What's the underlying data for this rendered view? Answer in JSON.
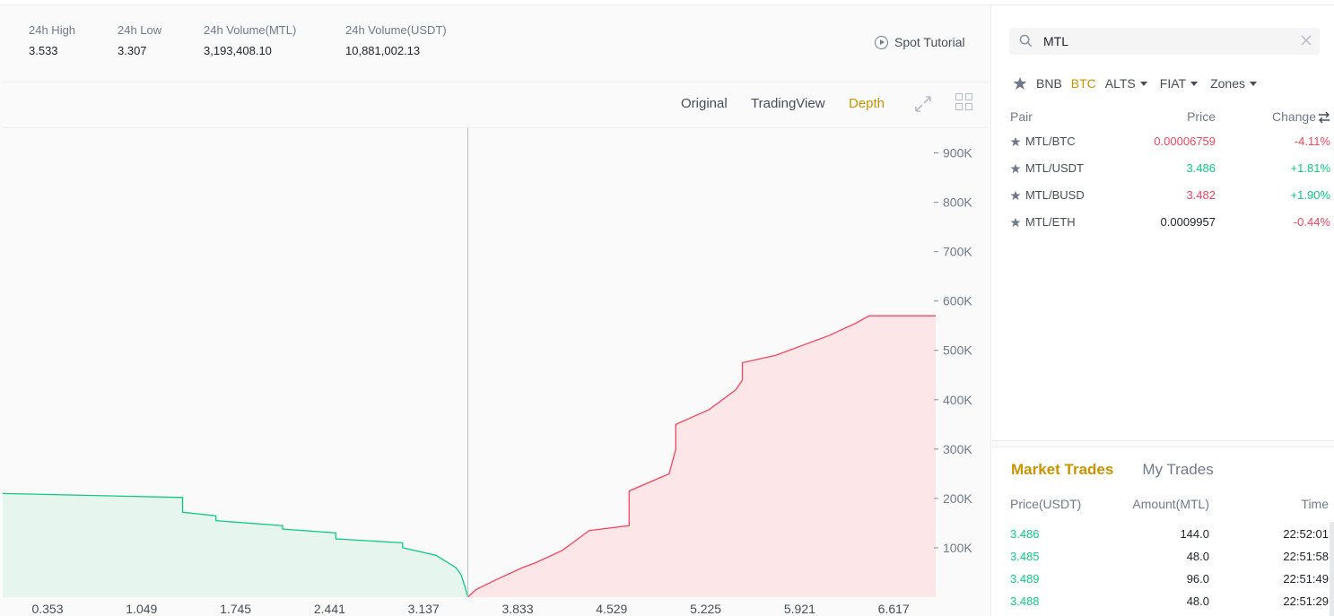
{
  "stats": [
    {
      "label": "24h High",
      "value": "3.533"
    },
    {
      "label": "24h Low",
      "value": "3.307"
    },
    {
      "label": "24h Volume(MTL)",
      "value": "3,193,408.10"
    },
    {
      "label": "24h Volume(USDT)",
      "value": "10,881,002.13"
    }
  ],
  "spot_tutorial": "Spot Tutorial",
  "chart_toolbar": {
    "original": "Original",
    "tradingview": "TradingView",
    "depth": "Depth"
  },
  "chart_data": {
    "type": "area",
    "title": "",
    "x_ticks": [
      "0.353",
      "1.049",
      "1.745",
      "2.441",
      "3.137",
      "3.833",
      "4.529",
      "5.225",
      "5.921",
      "6.617"
    ],
    "y_ticks": [
      "100K",
      "200K",
      "300K",
      "400K",
      "500K",
      "600K",
      "700K",
      "800K",
      "900K"
    ],
    "xlim": [
      0.0,
      7.0
    ],
    "ylim": [
      0,
      950000
    ],
    "mid_price": 3.49,
    "series": [
      {
        "side": "bids",
        "color": "#0ecb81",
        "x": [
          0.0,
          1.35,
          1.35,
          1.6,
          1.6,
          2.1,
          2.1,
          2.5,
          2.5,
          3.0,
          3.0,
          3.25,
          3.4,
          3.44,
          3.47,
          3.49
        ],
        "y": [
          210000,
          202000,
          172000,
          165000,
          155000,
          145000,
          138000,
          130000,
          118000,
          110000,
          100000,
          85000,
          60000,
          45000,
          20000,
          0
        ]
      },
      {
        "side": "asks",
        "color": "#f6465d",
        "x": [
          3.49,
          3.55,
          3.7,
          3.9,
          4.0,
          4.2,
          4.4,
          4.7,
          4.7,
          5.0,
          5.05,
          5.05,
          5.3,
          5.5,
          5.55,
          5.55,
          5.8,
          6.0,
          6.2,
          6.4,
          6.5,
          7.0
        ],
        "y": [
          0,
          15000,
          35000,
          60000,
          70000,
          95000,
          135000,
          145000,
          215000,
          250000,
          300000,
          350000,
          380000,
          420000,
          440000,
          475000,
          490000,
          510000,
          530000,
          555000,
          570000,
          570000
        ]
      }
    ]
  },
  "search": {
    "value": "MTL"
  },
  "market_tabs": {
    "bnb": "BNB",
    "btc": "BTC",
    "alts": "ALTS",
    "fiat": "FIAT",
    "zones": "Zones"
  },
  "pairs_header": {
    "pair": "Pair",
    "price": "Price",
    "change": "Change"
  },
  "pairs": [
    {
      "name": "MTL/BTC",
      "price": "0.00006759",
      "change": "-4.11%",
      "price_dir": "down",
      "change_dir": "down"
    },
    {
      "name": "MTL/USDT",
      "price": "3.486",
      "change": "+1.81%",
      "price_dir": "up",
      "change_dir": "up"
    },
    {
      "name": "MTL/BUSD",
      "price": "3.482",
      "change": "+1.90%",
      "price_dir": "down",
      "change_dir": "up"
    },
    {
      "name": "MTL/ETH",
      "price": "0.0009957",
      "change": "-0.44%",
      "price_dir": "neutral",
      "change_dir": "down"
    }
  ],
  "trade_tabs": {
    "market": "Market Trades",
    "mine": "My Trades"
  },
  "trades_header": {
    "price": "Price(USDT)",
    "amount": "Amount(MTL)",
    "time": "Time"
  },
  "trades": [
    {
      "price": "3.486",
      "amount": "144.0",
      "time": "22:52:01"
    },
    {
      "price": "3.485",
      "amount": "48.0",
      "time": "22:51:58"
    },
    {
      "price": "3.489",
      "amount": "96.0",
      "time": "22:51:49"
    },
    {
      "price": "3.488",
      "amount": "48.0",
      "time": "22:51:29"
    }
  ],
  "colors": {
    "accent": "#c99400",
    "up": "#0ecb81",
    "down": "#f6465d"
  }
}
